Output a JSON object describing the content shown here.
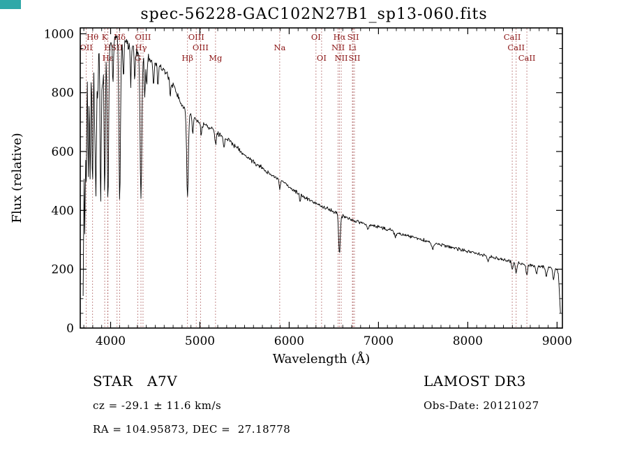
{
  "window": {
    "artifact_color": "#2fa8a8"
  },
  "title": "spec-56228-GAC102N27B1_sp13-060.fits",
  "annotations": {
    "class_line": "STAR   A7V",
    "cz_line": "cz = -29.1 ± 11.6 km/s",
    "radec_line": "RA = 104.95873, DEC =  27.18778",
    "survey": "LAMOST DR3",
    "obs_date": "Obs-Date: 20121027"
  },
  "chart_data": {
    "type": "line",
    "title": "spec-56228-GAC102N27B1_sp13-060.fits",
    "xlabel": "Wavelength (Å)",
    "ylabel": "Flux (relative)",
    "xlim": [
      3660,
      9060
    ],
    "ylim": [
      0,
      1020
    ],
    "x_ticks": [
      4000,
      5000,
      6000,
      7000,
      8000,
      9000
    ],
    "x_minor_step": 100,
    "y_ticks": [
      0,
      200,
      400,
      600,
      800,
      1000
    ],
    "y_minor_step": 50,
    "grid": false,
    "legend": "none",
    "colors": {
      "spectrum": "#000000",
      "marker_line": "#a85555",
      "marker_label": "#8b1515",
      "axis": "#000000"
    },
    "spectral_lines": [
      {
        "label": "Hθ",
        "wavelength": 3798,
        "row": 0
      },
      {
        "label": "K",
        "wavelength": 3934,
        "row": 0
      },
      {
        "label": "Hδ",
        "wavelength": 4102,
        "row": 0
      },
      {
        "label": "OIII",
        "wavelength": 4363,
        "row": 0
      },
      {
        "label": "OIII",
        "wavelength": 4959,
        "row": 0
      },
      {
        "label": "OI",
        "wavelength": 6300,
        "row": 0
      },
      {
        "label": "Hα",
        "wavelength": 6563,
        "row": 0
      },
      {
        "label": "SII",
        "wavelength": 6716,
        "row": 0
      },
      {
        "label": "CaII",
        "wavelength": 8498,
        "row": 0
      },
      {
        "label": "OII",
        "wavelength": 3727,
        "row": 1
      },
      {
        "label": "H",
        "wavelength": 3968,
        "row": 1
      },
      {
        "label": "SII",
        "wavelength": 4072,
        "row": 1
      },
      {
        "label": "Hγ",
        "wavelength": 4340,
        "row": 1
      },
      {
        "label": "OIII",
        "wavelength": 5007,
        "row": 1
      },
      {
        "label": "Na",
        "wavelength": 5894,
        "row": 1
      },
      {
        "label": "NII",
        "wavelength": 6548,
        "row": 1
      },
      {
        "label": "Li",
        "wavelength": 6708,
        "row": 1
      },
      {
        "label": "CaII",
        "wavelength": 8542,
        "row": 1
      },
      {
        "label": "Hε",
        "wavelength": 3970,
        "row": 2
      },
      {
        "label": "G",
        "wavelength": 4305,
        "row": 2
      },
      {
        "label": "Hβ",
        "wavelength": 4861,
        "row": 2
      },
      {
        "label": "Mg",
        "wavelength": 5175,
        "row": 2
      },
      {
        "label": "OI",
        "wavelength": 6363,
        "row": 2
      },
      {
        "label": "NII",
        "wavelength": 6583,
        "row": 2
      },
      {
        "label": "SII",
        "wavelength": 6731,
        "row": 2
      },
      {
        "label": "CaII",
        "wavelength": 8662,
        "row": 2
      }
    ],
    "continuum": [
      [
        3692,
        90
      ],
      [
        3705,
        650
      ],
      [
        3720,
        870
      ],
      [
        3760,
        920
      ],
      [
        3800,
        945
      ],
      [
        3850,
        955
      ],
      [
        3900,
        965
      ],
      [
        3950,
        970
      ],
      [
        4000,
        978
      ],
      [
        4060,
        988
      ],
      [
        4120,
        980
      ],
      [
        4180,
        968
      ],
      [
        4240,
        952
      ],
      [
        4300,
        940
      ],
      [
        4360,
        928
      ],
      [
        4420,
        920
      ],
      [
        4480,
        905
      ],
      [
        4540,
        893
      ],
      [
        4600,
        878
      ],
      [
        4660,
        852
      ],
      [
        4720,
        812
      ],
      [
        4780,
        768
      ],
      [
        4830,
        745
      ],
      [
        4880,
        728
      ],
      [
        4940,
        712
      ],
      [
        5000,
        700
      ],
      [
        5100,
        685
      ],
      [
        5200,
        663
      ],
      [
        5300,
        643
      ],
      [
        5400,
        618
      ],
      [
        5500,
        590
      ],
      [
        5600,
        565
      ],
      [
        5700,
        543
      ],
      [
        5800,
        520
      ],
      [
        5900,
        503
      ],
      [
        6000,
        480
      ],
      [
        6100,
        458
      ],
      [
        6200,
        440
      ],
      [
        6300,
        424
      ],
      [
        6400,
        409
      ],
      [
        6500,
        396
      ],
      [
        6600,
        380
      ],
      [
        6700,
        369
      ],
      [
        6800,
        359
      ],
      [
        6900,
        350
      ],
      [
        7000,
        344
      ],
      [
        7100,
        336
      ],
      [
        7200,
        327
      ],
      [
        7300,
        317
      ],
      [
        7400,
        308
      ],
      [
        7500,
        300
      ],
      [
        7600,
        291
      ],
      [
        7700,
        283
      ],
      [
        7800,
        276
      ],
      [
        7900,
        268
      ],
      [
        8000,
        261
      ],
      [
        8100,
        253
      ],
      [
        8200,
        246
      ],
      [
        8300,
        239
      ],
      [
        8400,
        232
      ],
      [
        8500,
        225
      ],
      [
        8600,
        219
      ],
      [
        8700,
        214
      ],
      [
        8800,
        210
      ],
      [
        8900,
        206
      ],
      [
        8960,
        203
      ],
      [
        9000,
        200
      ],
      [
        9015,
        185
      ],
      [
        9030,
        100
      ],
      [
        9042,
        25
      ]
    ],
    "absorption_lines": [
      [
        3712,
        430,
        5
      ],
      [
        3727,
        400,
        5
      ],
      [
        3750,
        420,
        5
      ],
      [
        3771,
        440,
        6
      ],
      [
        3798,
        480,
        6
      ],
      [
        3820,
        200,
        5
      ],
      [
        3835,
        510,
        7
      ],
      [
        3856,
        180,
        5
      ],
      [
        3889,
        530,
        7
      ],
      [
        3910,
        150,
        5
      ],
      [
        3934,
        520,
        7
      ],
      [
        3970,
        555,
        8
      ],
      [
        4026,
        140,
        6
      ],
      [
        4102,
        545,
        9
      ],
      [
        4144,
        120,
        6
      ],
      [
        4226,
        120,
        6
      ],
      [
        4271,
        110,
        6
      ],
      [
        4340,
        500,
        9
      ],
      [
        4383,
        140,
        6
      ],
      [
        4405,
        100,
        6
      ],
      [
        4481,
        90,
        6
      ],
      [
        4531,
        70,
        6
      ],
      [
        4668,
        60,
        6
      ],
      [
        4861,
        300,
        9
      ],
      [
        4920,
        60,
        6
      ],
      [
        5015,
        50,
        6
      ],
      [
        5175,
        45,
        8
      ],
      [
        5270,
        35,
        7
      ],
      [
        5894,
        38,
        7
      ],
      [
        6122,
        25,
        6
      ],
      [
        6563,
        135,
        9
      ],
      [
        6880,
        18,
        10
      ],
      [
        7190,
        16,
        12
      ],
      [
        7605,
        22,
        12
      ],
      [
        8230,
        15,
        10
      ],
      [
        8498,
        28,
        7
      ],
      [
        8542,
        36,
        8
      ],
      [
        8662,
        38,
        8
      ],
      [
        8770,
        28,
        9
      ],
      [
        8880,
        32,
        9
      ],
      [
        8960,
        36,
        9
      ]
    ],
    "noise_profile": [
      [
        3692,
        26
      ],
      [
        4200,
        20
      ],
      [
        4800,
        14
      ],
      [
        5500,
        10
      ],
      [
        6500,
        8
      ],
      [
        7500,
        7
      ],
      [
        9050,
        6
      ]
    ],
    "sample_step": 6
  }
}
